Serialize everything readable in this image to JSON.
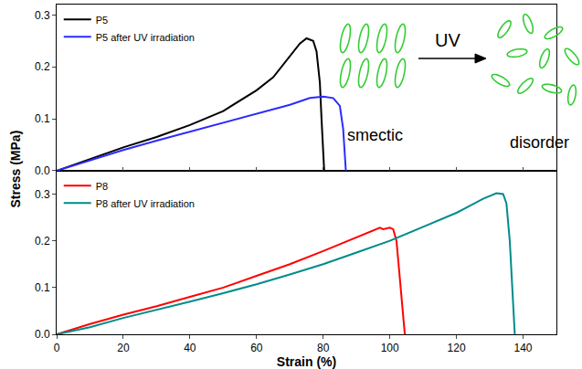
{
  "chart_data": {
    "type": "line",
    "x_label": "Strain (%)",
    "y_label": "Stress (MPa)",
    "xlim": [
      0,
      150
    ],
    "xticks": [
      0,
      20,
      40,
      60,
      80,
      100,
      120,
      140
    ],
    "annotations": [
      "UV",
      "smectic",
      "disorder"
    ],
    "panels": [
      {
        "ylim": [
          0,
          0.32
        ],
        "yticks": [
          {
            "value": 0,
            "label": "0.0"
          },
          0.1,
          0.2,
          0.3
        ],
        "legend": "upper left",
        "tick_labels": "y",
        "series": [
          {
            "name": "P5",
            "color": "#000000",
            "x": [
              0,
              10,
              20,
              30,
              40,
              50,
              60,
              65,
              70,
              73,
              75,
              77,
              78,
              79,
              79.5,
              80,
              80.3
            ],
            "values": [
              0,
              0.022,
              0.045,
              0.065,
              0.088,
              0.115,
              0.155,
              0.18,
              0.22,
              0.245,
              0.255,
              0.25,
              0.23,
              0.17,
              0.1,
              0.03,
              0
            ]
          },
          {
            "name": "P5 after UV irradiation",
            "color": "#2b2bff",
            "x": [
              0,
              10,
              20,
              30,
              40,
              50,
              60,
              70,
              76,
              80,
              83,
              85,
              86,
              86.5,
              86.8
            ],
            "values": [
              0,
              0.02,
              0.04,
              0.058,
              0.075,
              0.093,
              0.11,
              0.127,
              0.14,
              0.143,
              0.14,
              0.125,
              0.08,
              0.03,
              0
            ]
          }
        ]
      },
      {
        "ylim": [
          0,
          0.35
        ],
        "yticks": [
          {
            "value": 0,
            "label": "0.0"
          },
          0.1,
          0.2,
          0.3
        ],
        "legend": "upper left",
        "series": [
          {
            "name": "P8",
            "color": "#ff0000",
            "x": [
              0,
              10,
              20,
              30,
              40,
              50,
              60,
              70,
              80,
              90,
              96,
              97,
              98,
              100,
              101,
              102,
              103,
              104,
              104.5
            ],
            "values": [
              0,
              0.022,
              0.042,
              0.06,
              0.08,
              0.1,
              0.125,
              0.15,
              0.178,
              0.207,
              0.225,
              0.228,
              0.225,
              0.228,
              0.225,
              0.2,
              0.12,
              0.03,
              0
            ]
          },
          {
            "name": "P8 after UV irradiation",
            "color": "#008b8b",
            "x": [
              0,
              10,
              20,
              30,
              40,
              50,
              60,
              70,
              80,
              90,
              100,
              110,
              120,
              128,
              132,
              134,
              135,
              136,
              137,
              137.5
            ],
            "values": [
              0,
              0.015,
              0.035,
              0.052,
              0.07,
              0.088,
              0.107,
              0.128,
              0.15,
              0.175,
              0.2,
              0.23,
              0.26,
              0.29,
              0.302,
              0.3,
              0.28,
              0.2,
              0.08,
              0
            ]
          }
        ]
      }
    ]
  }
}
